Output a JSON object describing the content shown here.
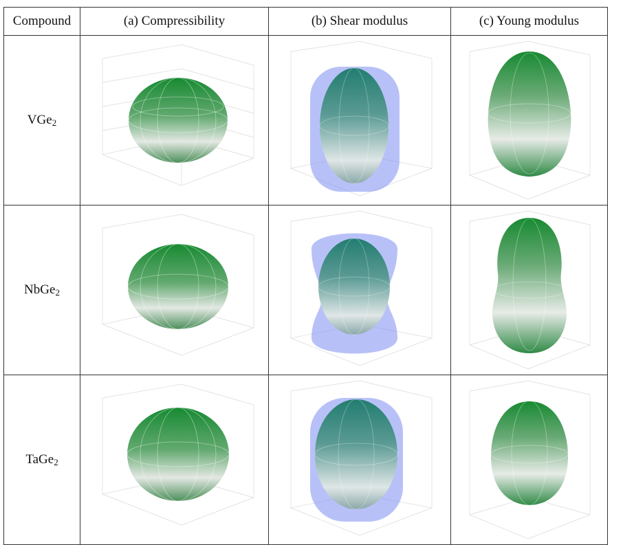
{
  "headers": {
    "compound": "Compound",
    "compressibility": "(a)  Compressibility",
    "shear": "(b)  Shear modulus",
    "young": "(c)  Young modulus"
  },
  "rows": [
    {
      "compound_base": "VGe",
      "compound_sub": "2",
      "a": "VGe2-compressibility",
      "b": "VGe2-shear",
      "c": "VGe2-young"
    },
    {
      "compound_base": "NbGe",
      "compound_sub": "2",
      "a": "NbGe2-compressibility",
      "b": "NbGe2-shear",
      "c": "NbGe2-young"
    },
    {
      "compound_base": "TaGe",
      "compound_sub": "2",
      "a": "TaGe2-compressibility",
      "b": "TaGe2-shear",
      "c": "TaGe2-young"
    }
  ],
  "colors": {
    "green": "#1f8a3a",
    "light": "#eef3ee",
    "blue_shell": "#7e8ef0",
    "teal": "#2e7d8e"
  }
}
